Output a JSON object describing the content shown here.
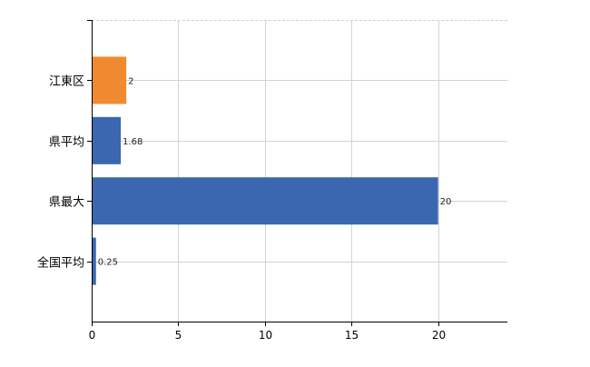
{
  "chart_data": {
    "type": "bar",
    "orientation": "horizontal",
    "categories": [
      "江東区",
      "県平均",
      "県最大",
      "全国平均"
    ],
    "values": [
      2,
      1.68,
      20,
      0.25
    ],
    "data_labels": [
      "2",
      "1.68",
      "20",
      "0.25"
    ],
    "bar_colors": [
      "#f08a30",
      "#3b67b0",
      "#3b67b0",
      "#3b67b0"
    ],
    "xlim": [
      0,
      24
    ],
    "xticks": [
      0,
      5,
      10,
      15,
      20
    ],
    "xtick_labels": [
      "0",
      "5",
      "10",
      "15",
      "20"
    ],
    "title": "",
    "xlabel": "",
    "ylabel": "",
    "grid": true,
    "grid_color": "#d3d3d3",
    "axis_color": "#000000"
  }
}
